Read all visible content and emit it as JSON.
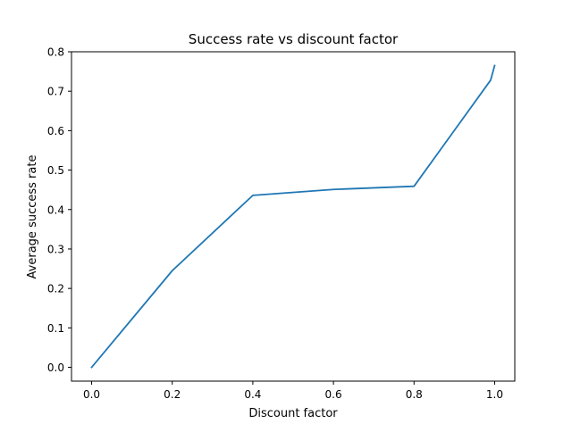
{
  "chart_data": {
    "type": "line",
    "title": "Success rate vs discount factor",
    "xlabel": "Discount factor",
    "ylabel": "Average success rate",
    "xlim": [
      -0.05,
      1.05
    ],
    "ylim": [
      -0.035,
      0.8
    ],
    "xticks": [
      0.0,
      0.2,
      0.4,
      0.6,
      0.8,
      1.0
    ],
    "xtick_labels": [
      "0.0",
      "0.2",
      "0.4",
      "0.6",
      "0.8",
      "1.0"
    ],
    "yticks": [
      0.0,
      0.1,
      0.2,
      0.3,
      0.4,
      0.5,
      0.6,
      0.7,
      0.8
    ],
    "ytick_labels": [
      "0.0",
      "0.1",
      "0.2",
      "0.3",
      "0.4",
      "0.5",
      "0.6",
      "0.7",
      "0.8"
    ],
    "grid": false,
    "series": [
      {
        "name": "success-rate",
        "color": "#1f77b4",
        "x": [
          0.0,
          0.2,
          0.4,
          0.6,
          0.8,
          0.99,
          1.0
        ],
        "y": [
          0.0,
          0.245,
          0.436,
          0.451,
          0.459,
          0.728,
          0.765
        ]
      }
    ]
  }
}
